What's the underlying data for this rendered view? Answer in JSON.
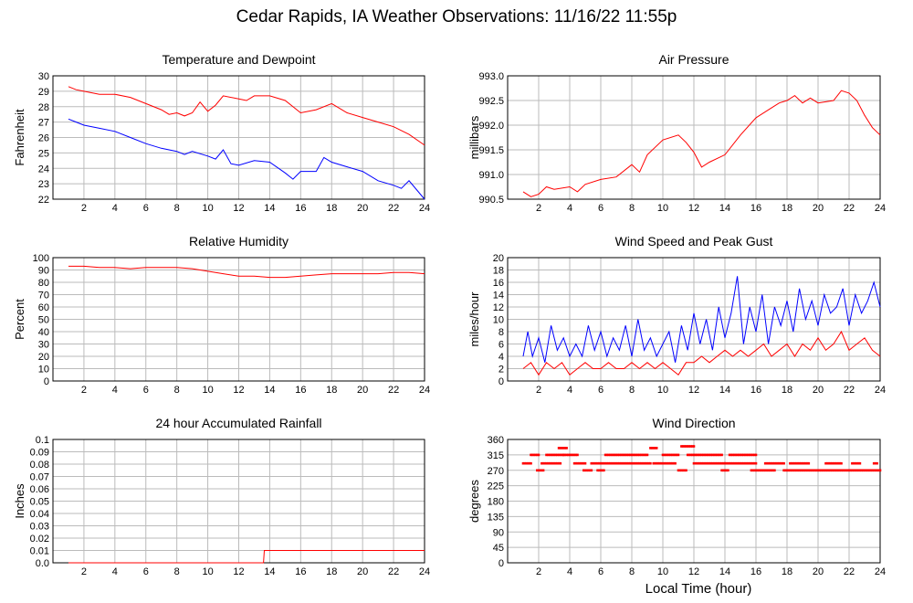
{
  "page": {
    "title": "Cedar Rapids, IA Weather Observations: 11/16/22 11:55p",
    "x_axis_label": "Local Time (hour)"
  },
  "colors": {
    "red": "#ff0000",
    "blue": "#0000ff",
    "grid": "#bbbbbb",
    "frame": "#000000"
  },
  "chart_data": [
    {
      "id": "temp",
      "type": "line",
      "title": "Temperature and Dewpoint",
      "ylabel": "Fahrenheit",
      "xlim": [
        0,
        24
      ],
      "ylim": [
        22,
        30
      ],
      "xticks": [
        2,
        4,
        6,
        8,
        10,
        12,
        14,
        16,
        18,
        20,
        22,
        24
      ],
      "yticks": [
        22,
        23,
        24,
        25,
        26,
        27,
        28,
        29,
        30
      ],
      "series": [
        {
          "color": "red",
          "x": [
            1,
            1.5,
            2,
            3,
            4,
            5,
            6,
            7,
            7.5,
            8,
            8.5,
            9,
            9.5,
            10,
            10.5,
            11,
            12,
            12.5,
            13,
            14,
            15,
            16,
            17,
            18,
            19,
            20,
            21,
            22,
            23,
            24
          ],
          "y": [
            29.3,
            29.1,
            29.0,
            28.8,
            28.8,
            28.6,
            28.2,
            27.8,
            27.5,
            27.6,
            27.4,
            27.6,
            28.3,
            27.7,
            28.1,
            28.7,
            28.5,
            28.4,
            28.7,
            28.7,
            28.4,
            27.6,
            27.8,
            28.2,
            27.6,
            27.3,
            27.0,
            26.7,
            26.2,
            25.5
          ]
        },
        {
          "color": "blue",
          "x": [
            1,
            1.5,
            2,
            3,
            4,
            5,
            6,
            7,
            8,
            8.5,
            9,
            10,
            10.5,
            11,
            11.5,
            12,
            13,
            14,
            15,
            15.5,
            16,
            17,
            17.5,
            18,
            19,
            20,
            21,
            22,
            22.5,
            23,
            24
          ],
          "y": [
            27.2,
            27.0,
            26.8,
            26.6,
            26.4,
            26.0,
            25.6,
            25.3,
            25.1,
            24.9,
            25.1,
            24.8,
            24.6,
            25.2,
            24.3,
            24.2,
            24.5,
            24.4,
            23.7,
            23.3,
            23.8,
            23.8,
            24.7,
            24.4,
            24.1,
            23.8,
            23.2,
            22.9,
            22.7,
            23.2,
            22.0
          ]
        }
      ]
    },
    {
      "id": "pressure",
      "type": "line",
      "title": "Air Pressure",
      "ylabel": "millibars",
      "xlim": [
        0,
        24
      ],
      "ylim": [
        990.5,
        993
      ],
      "xticks": [
        2,
        4,
        6,
        8,
        10,
        12,
        14,
        16,
        18,
        20,
        22,
        24
      ],
      "yticks": [
        "990.5",
        "991.0",
        "991.5",
        "992.0",
        "992.5",
        "993.0"
      ],
      "series": [
        {
          "color": "red",
          "x": [
            1,
            1.5,
            2,
            2.5,
            3,
            4,
            4.5,
            5,
            6,
            7,
            8,
            8.5,
            9,
            10,
            11,
            11.5,
            12,
            12.5,
            13,
            14,
            15,
            16,
            17,
            17.5,
            18,
            18.5,
            19,
            19.5,
            20,
            21,
            21.5,
            22,
            22.5,
            23,
            23.5,
            24
          ],
          "y": [
            990.65,
            990.55,
            990.6,
            990.75,
            990.7,
            990.75,
            990.65,
            990.8,
            990.9,
            990.95,
            991.2,
            991.05,
            991.4,
            991.7,
            991.8,
            991.65,
            991.45,
            991.15,
            991.25,
            991.4,
            991.8,
            992.15,
            992.35,
            992.45,
            992.5,
            992.6,
            992.45,
            992.55,
            992.45,
            992.5,
            992.7,
            992.65,
            992.5,
            992.2,
            991.95,
            991.8
          ]
        }
      ]
    },
    {
      "id": "humidity",
      "type": "line",
      "title": "Relative Humidity",
      "ylabel": "Percent",
      "xlim": [
        0,
        24
      ],
      "ylim": [
        0,
        100
      ],
      "xticks": [
        2,
        4,
        6,
        8,
        10,
        12,
        14,
        16,
        18,
        20,
        22,
        24
      ],
      "yticks": [
        0,
        10,
        20,
        30,
        40,
        50,
        60,
        70,
        80,
        90,
        100
      ],
      "series": [
        {
          "color": "red",
          "x": [
            1,
            2,
            3,
            4,
            5,
            6,
            7,
            8,
            9,
            10,
            11,
            12,
            13,
            14,
            15,
            16,
            17,
            18,
            19,
            20,
            21,
            22,
            23,
            24
          ],
          "y": [
            93,
            93,
            92,
            92,
            91,
            92,
            92,
            92,
            91,
            89,
            87,
            85,
            85,
            84,
            84,
            85,
            86,
            87,
            87,
            87,
            87,
            88,
            88,
            87
          ]
        }
      ]
    },
    {
      "id": "wind",
      "type": "line",
      "title": "Wind Speed and Peak Gust",
      "ylabel": "miles/hour",
      "xlim": [
        0,
        24
      ],
      "ylim": [
        0,
        20
      ],
      "xticks": [
        2,
        4,
        6,
        8,
        10,
        12,
        14,
        16,
        18,
        20,
        22,
        24
      ],
      "yticks": [
        0,
        2,
        4,
        6,
        8,
        10,
        12,
        14,
        16,
        18,
        20
      ],
      "series": [
        {
          "color": "blue",
          "x": [
            1,
            1.3,
            1.6,
            2,
            2.4,
            2.8,
            3.2,
            3.6,
            4,
            4.4,
            4.8,
            5.2,
            5.6,
            6,
            6.4,
            6.8,
            7.2,
            7.6,
            8,
            8.4,
            8.8,
            9.2,
            9.6,
            10,
            10.4,
            10.8,
            11.2,
            11.6,
            12,
            12.4,
            12.8,
            13.2,
            13.6,
            14,
            14.4,
            14.8,
            15.2,
            15.6,
            16,
            16.4,
            16.8,
            17.2,
            17.6,
            18,
            18.4,
            18.8,
            19.2,
            19.6,
            20,
            20.4,
            20.8,
            21.2,
            21.6,
            22,
            22.4,
            22.8,
            23.2,
            23.6,
            24
          ],
          "y": [
            4,
            8,
            4,
            7,
            3,
            9,
            5,
            7,
            4,
            6,
            4,
            9,
            5,
            8,
            4,
            7,
            5,
            9,
            4,
            10,
            5,
            7,
            4,
            6,
            8,
            3,
            9,
            5,
            11,
            6,
            10,
            5,
            12,
            7,
            11,
            17,
            6,
            12,
            8,
            14,
            6,
            12,
            9,
            13,
            8,
            15,
            10,
            13,
            9,
            14,
            11,
            12,
            15,
            9,
            14,
            11,
            13,
            16,
            12
          ]
        },
        {
          "color": "red",
          "x": [
            1,
            1.5,
            2,
            2.5,
            3,
            3.5,
            4,
            4.5,
            5,
            5.5,
            6,
            6.5,
            7,
            7.5,
            8,
            8.5,
            9,
            9.5,
            10,
            10.5,
            11,
            11.5,
            12,
            12.5,
            13,
            13.5,
            14,
            14.5,
            15,
            15.5,
            16,
            16.5,
            17,
            17.5,
            18,
            18.5,
            19,
            19.5,
            20,
            20.5,
            21,
            21.5,
            22,
            22.5,
            23,
            23.5,
            24
          ],
          "y": [
            2,
            3,
            1,
            3,
            2,
            3,
            1,
            2,
            3,
            2,
            2,
            3,
            2,
            2,
            3,
            2,
            3,
            2,
            3,
            2,
            1,
            3,
            3,
            4,
            3,
            4,
            5,
            4,
            5,
            4,
            5,
            6,
            4,
            5,
            6,
            4,
            6,
            5,
            7,
            5,
            6,
            8,
            5,
            6,
            7,
            5,
            4
          ]
        }
      ]
    },
    {
      "id": "rain",
      "type": "line",
      "title": "24 hour Accumulated Rainfall",
      "ylabel": "Inches",
      "xlim": [
        0,
        24
      ],
      "ylim": [
        0,
        0.1
      ],
      "xticks": [
        2,
        4,
        6,
        8,
        10,
        12,
        14,
        16,
        18,
        20,
        22,
        24
      ],
      "yticks": [
        "0.0",
        "0.01",
        "0.02",
        "0.03",
        "0.04",
        "0.05",
        "0.06",
        "0.07",
        "0.08",
        "0.09",
        "0.1"
      ],
      "series": [
        {
          "color": "red",
          "x": [
            1,
            13.6,
            13.65,
            24
          ],
          "y": [
            0,
            0,
            0.01,
            0.01
          ]
        }
      ]
    },
    {
      "id": "direction",
      "type": "scatter",
      "title": "Wind Direction",
      "ylabel": "degrees",
      "xlim": [
        0,
        24
      ],
      "ylim": [
        0,
        360
      ],
      "xticks": [
        2,
        4,
        6,
        8,
        10,
        12,
        14,
        16,
        18,
        20,
        22,
        24
      ],
      "yticks": [
        0,
        45,
        90,
        135,
        180,
        225,
        270,
        315,
        360
      ],
      "segments": [
        {
          "from": 1.0,
          "to": 1.5,
          "y": 290
        },
        {
          "from": 1.5,
          "to": 2.0,
          "y": 315
        },
        {
          "from": 1.9,
          "to": 2.3,
          "y": 270
        },
        {
          "from": 2.2,
          "to": 3.4,
          "y": 290
        },
        {
          "from": 2.5,
          "to": 3.6,
          "y": 315
        },
        {
          "from": 3.3,
          "to": 3.8,
          "y": 335
        },
        {
          "from": 3.6,
          "to": 4.5,
          "y": 315
        },
        {
          "from": 4.3,
          "to": 5.0,
          "y": 290
        },
        {
          "from": 4.9,
          "to": 5.4,
          "y": 270
        },
        {
          "from": 5.4,
          "to": 9.2,
          "y": 290
        },
        {
          "from": 5.8,
          "to": 6.2,
          "y": 270
        },
        {
          "from": 6.3,
          "to": 9.0,
          "y": 315
        },
        {
          "from": 9.2,
          "to": 9.6,
          "y": 335
        },
        {
          "from": 9.4,
          "to": 10.8,
          "y": 290
        },
        {
          "from": 10.0,
          "to": 11.0,
          "y": 315
        },
        {
          "from": 11.0,
          "to": 11.5,
          "y": 270
        },
        {
          "from": 11.2,
          "to": 12.0,
          "y": 340
        },
        {
          "from": 11.6,
          "to": 13.8,
          "y": 315
        },
        {
          "from": 12.0,
          "to": 14.0,
          "y": 290
        },
        {
          "from": 13.8,
          "to": 14.2,
          "y": 270
        },
        {
          "from": 14.0,
          "to": 16.0,
          "y": 290
        },
        {
          "from": 14.3,
          "to": 16.0,
          "y": 315
        },
        {
          "from": 15.7,
          "to": 17.2,
          "y": 270
        },
        {
          "from": 16.6,
          "to": 17.8,
          "y": 290
        },
        {
          "from": 17.8,
          "to": 24.0,
          "y": 270
        },
        {
          "from": 18.2,
          "to": 19.4,
          "y": 290
        },
        {
          "from": 20.5,
          "to": 21.5,
          "y": 290
        },
        {
          "from": 22.2,
          "to": 22.7,
          "y": 290
        },
        {
          "from": 23.6,
          "to": 23.8,
          "y": 290
        }
      ]
    }
  ]
}
